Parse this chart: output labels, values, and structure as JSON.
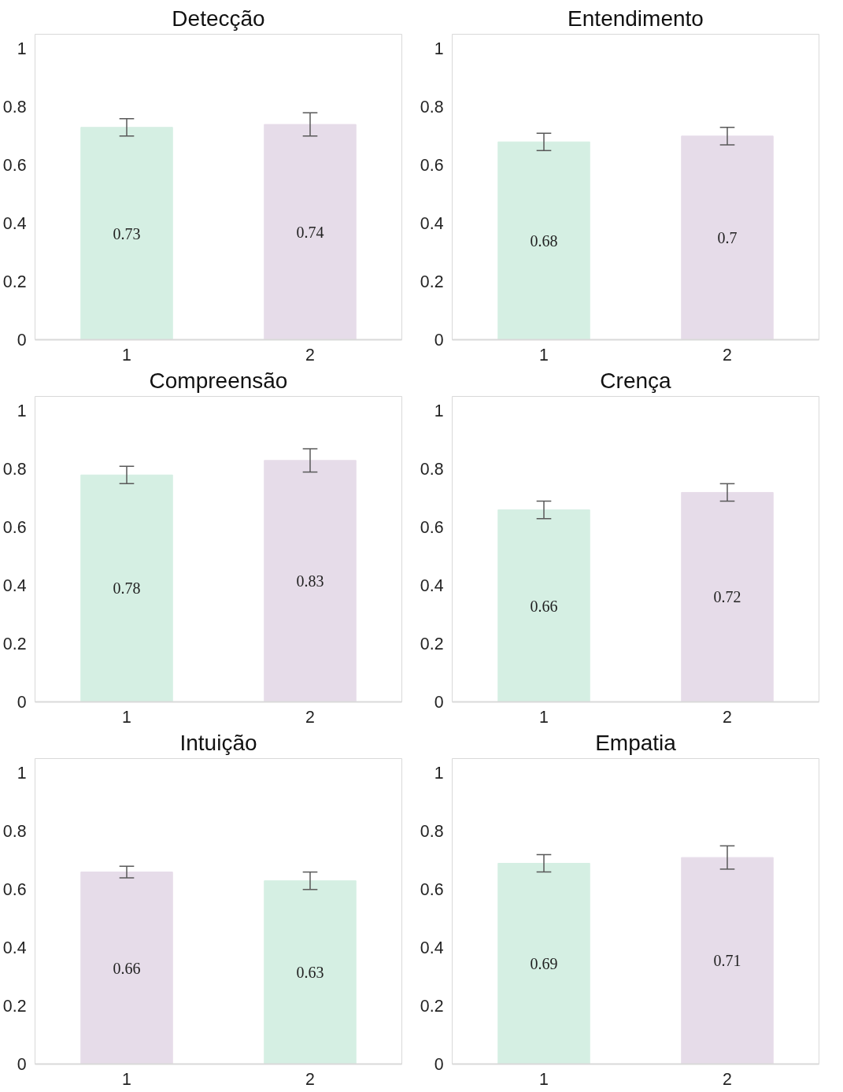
{
  "chart_data": [
    {
      "type": "bar",
      "title": "Detecção",
      "categories": [
        "1",
        "2"
      ],
      "values": [
        0.73,
        0.74
      ],
      "colors": [
        "#d5efe3",
        "#e6dce9"
      ],
      "errors": [
        0.03,
        0.04
      ],
      "ylim": [
        0,
        1
      ],
      "yticks": [
        0,
        0.2,
        0.4,
        0.6,
        0.8,
        1
      ],
      "data_labels": true,
      "grid": false
    },
    {
      "type": "bar",
      "title": "Entendimento",
      "categories": [
        "1",
        "2"
      ],
      "values": [
        0.68,
        0.7
      ],
      "colors": [
        "#d5efe3",
        "#e6dce9"
      ],
      "errors": [
        0.03,
        0.03
      ],
      "ylim": [
        0,
        1
      ],
      "yticks": [
        0,
        0.2,
        0.4,
        0.6,
        0.8,
        1
      ],
      "data_labels": true,
      "grid": false
    },
    {
      "type": "bar",
      "title": "Compreensão",
      "categories": [
        "1",
        "2"
      ],
      "values": [
        0.78,
        0.83
      ],
      "colors": [
        "#d5efe3",
        "#e6dce9"
      ],
      "errors": [
        0.03,
        0.04
      ],
      "ylim": [
        0,
        1
      ],
      "yticks": [
        0,
        0.2,
        0.4,
        0.6,
        0.8,
        1
      ],
      "data_labels": true,
      "grid": false
    },
    {
      "type": "bar",
      "title": "Crença",
      "categories": [
        "1",
        "2"
      ],
      "values": [
        0.66,
        0.72
      ],
      "colors": [
        "#d5efe3",
        "#e6dce9"
      ],
      "errors": [
        0.03,
        0.03
      ],
      "ylim": [
        0,
        1
      ],
      "yticks": [
        0,
        0.2,
        0.4,
        0.6,
        0.8,
        1
      ],
      "data_labels": true,
      "grid": false
    },
    {
      "type": "bar",
      "title": "Intuição",
      "categories": [
        "1",
        "2"
      ],
      "values": [
        0.66,
        0.63
      ],
      "colors": [
        "#e6dce9",
        "#d5efe3"
      ],
      "errors": [
        0.02,
        0.03
      ],
      "ylim": [
        0,
        1
      ],
      "yticks": [
        0,
        0.2,
        0.4,
        0.6,
        0.8,
        1
      ],
      "data_labels": true,
      "grid": false
    },
    {
      "type": "bar",
      "title": "Empatia",
      "categories": [
        "1",
        "2"
      ],
      "values": [
        0.69,
        0.71
      ],
      "colors": [
        "#d5efe3",
        "#e6dce9"
      ],
      "errors": [
        0.03,
        0.04
      ],
      "ylim": [
        0,
        1
      ],
      "yticks": [
        0,
        0.2,
        0.4,
        0.6,
        0.8,
        1
      ],
      "data_labels": true,
      "grid": false
    }
  ]
}
